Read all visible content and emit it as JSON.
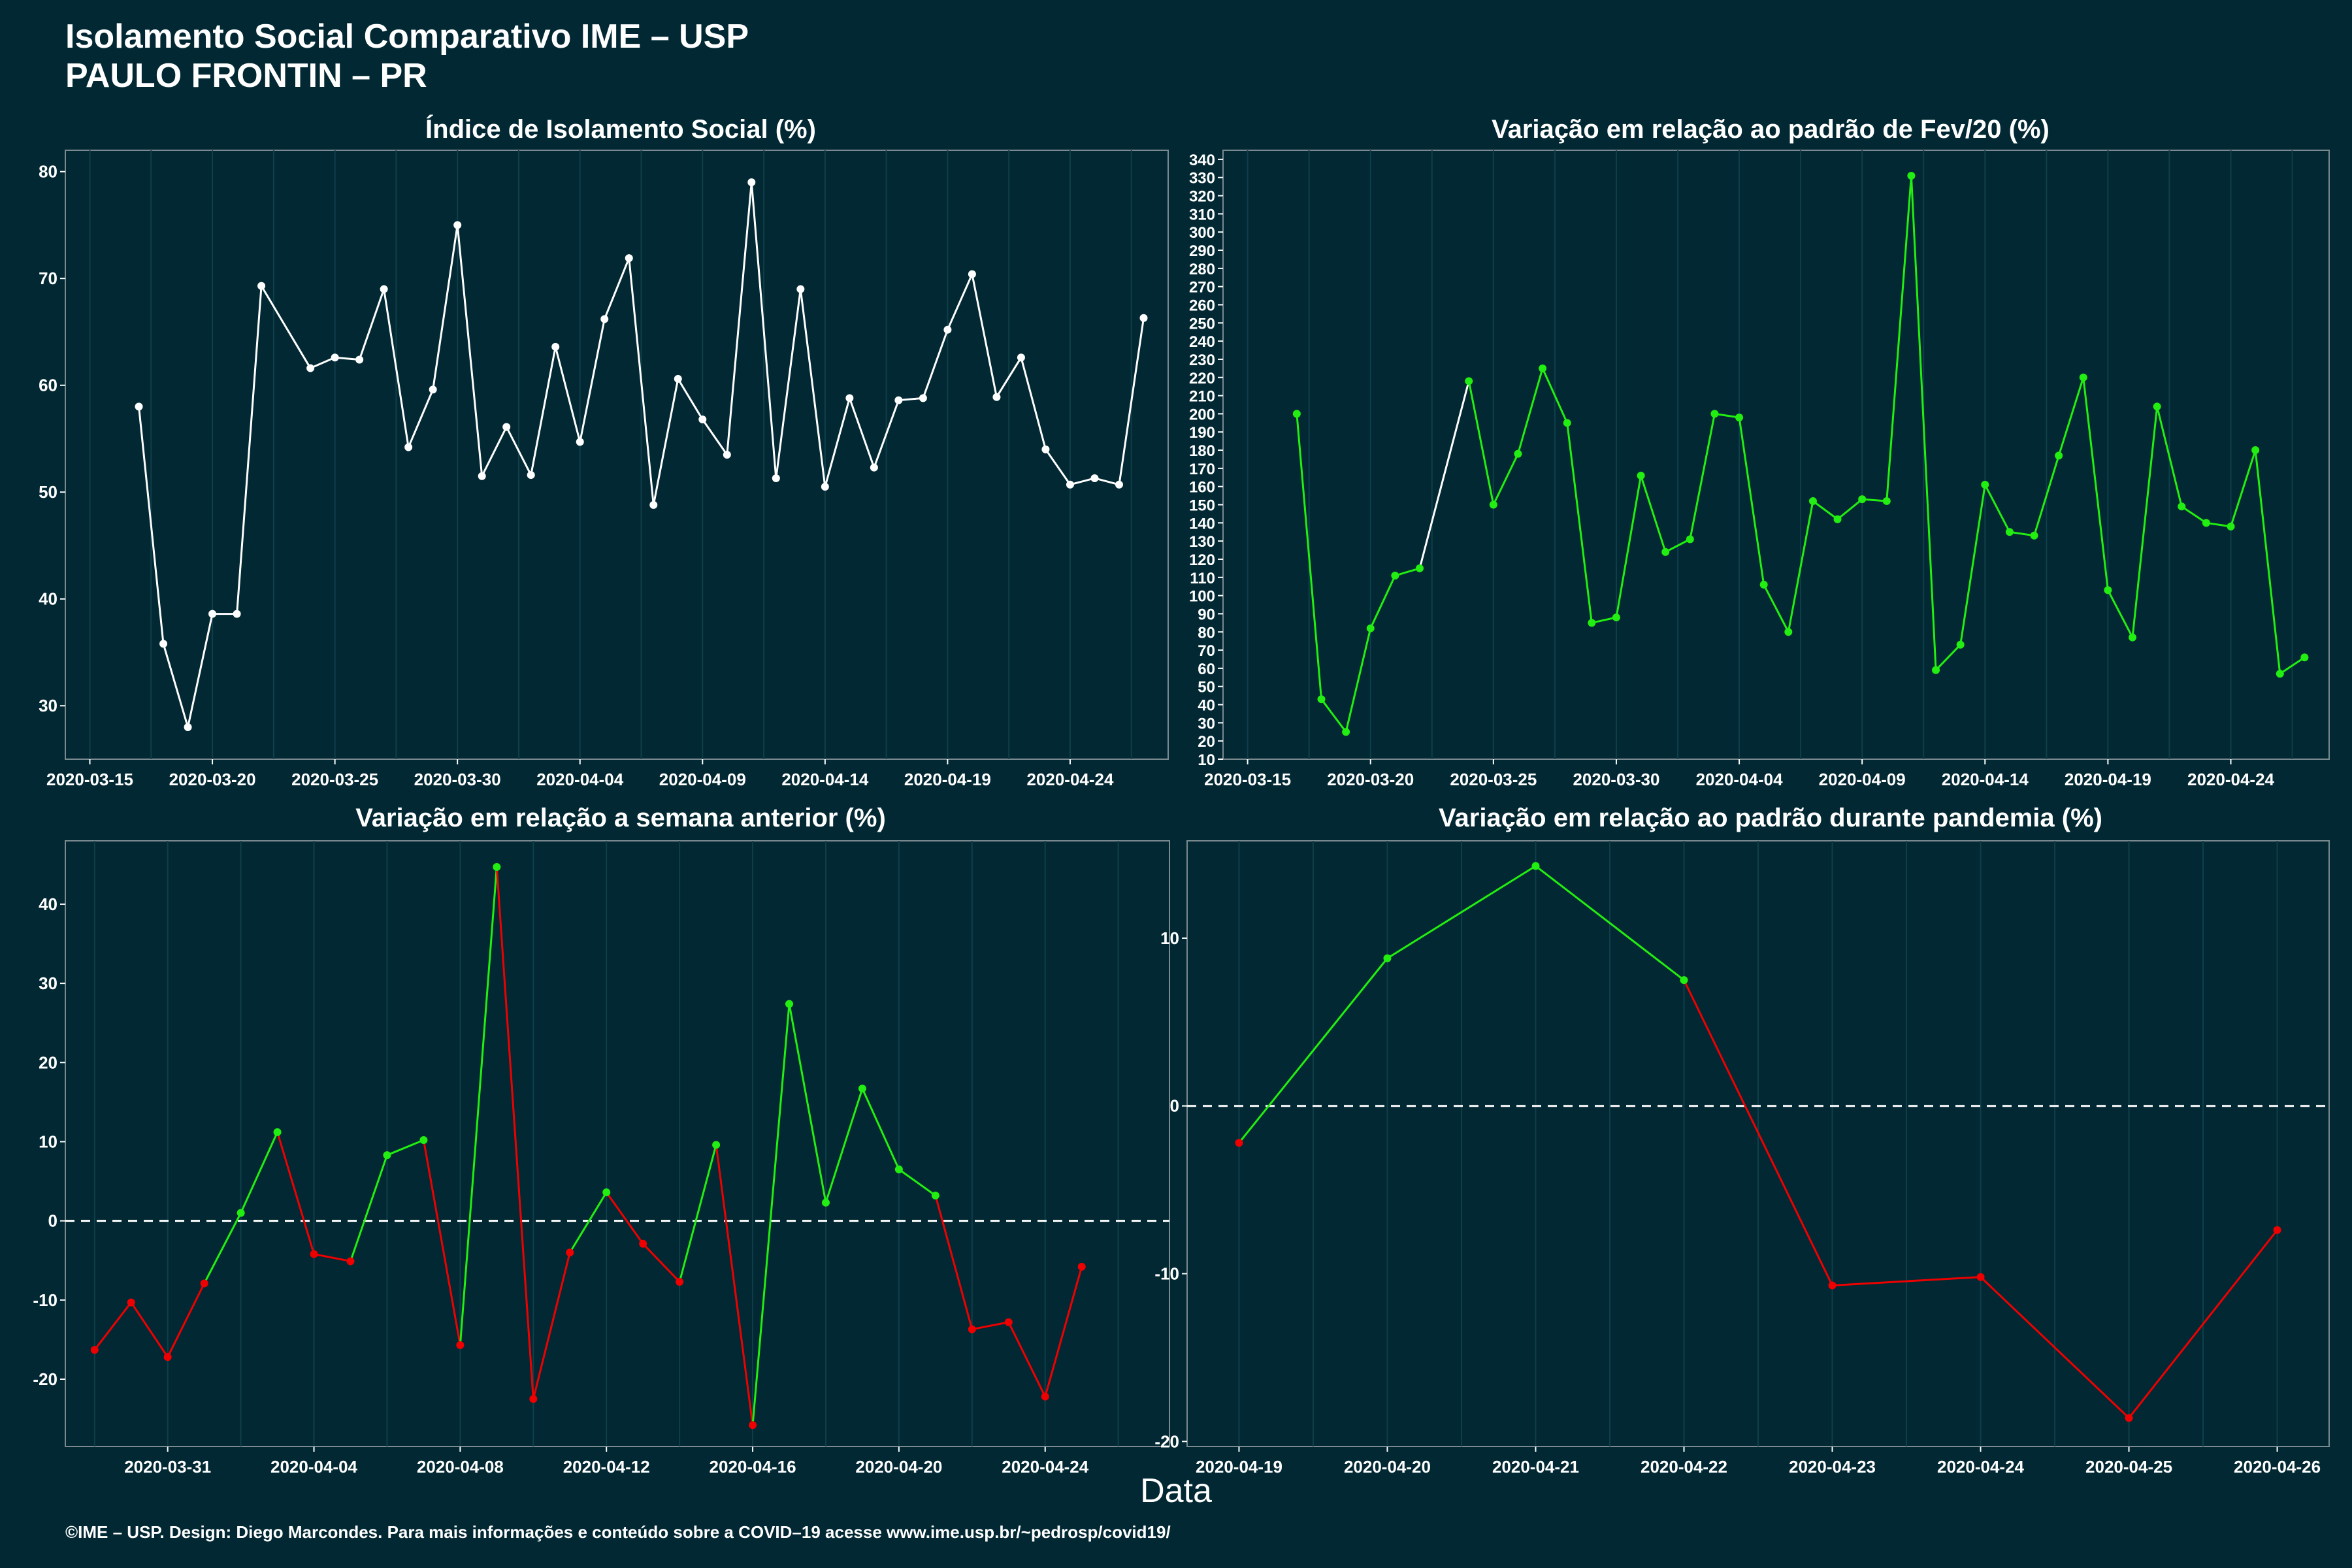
{
  "title_line1": "Isolamento Social Comparativo IME – USP",
  "title_line2": "PAULO FRONTIN – PR",
  "xlabel": "Data",
  "caption": "©IME – USP. Design: Diego Marcondes. Para mais informações e conteúdo sobre a COVID–19 acesse www.ime.usp.br/~pedrosp/covid19/",
  "colors": {
    "background": "#022833",
    "grid": "#0e3f4a",
    "white_series": "#ffffff",
    "positive": "#22ee11",
    "negative": "#ee0000"
  },
  "chart_data": [
    {
      "type": "line",
      "title": "Índice de Isolamento Social (%)",
      "xlabel": "Data",
      "ylabel": "",
      "x_start": "2020-03-17",
      "x_end": "2020-04-26",
      "xlim_dates": [
        "2020-03-14",
        "2020-04-28"
      ],
      "ylim": [
        25,
        82
      ],
      "yticks": [
        30,
        40,
        50,
        60,
        70,
        80
      ],
      "xtick_labels": [
        "2020-03-15",
        "2020-03-20",
        "2020-03-25",
        "2020-03-30",
        "2020-04-04",
        "2020-04-09",
        "2020-04-14",
        "2020-04-19",
        "2020-04-24"
      ],
      "color_mode": "single",
      "values": [
        58.0,
        35.8,
        28.0,
        38.6,
        38.6,
        69.3,
        null,
        61.6,
        62.6,
        62.4,
        69.0,
        54.2,
        59.6,
        75.0,
        51.5,
        56.1,
        51.6,
        63.6,
        54.7,
        66.2,
        71.9,
        48.8,
        60.6,
        56.8,
        53.5,
        79.0,
        51.3,
        69.0,
        50.5,
        58.8,
        52.3,
        58.6,
        58.8,
        65.2,
        70.4,
        58.9,
        62.6,
        54.0,
        50.7,
        51.3,
        50.7,
        66.3
      ]
    },
    {
      "type": "line",
      "title": "Variação em relação ao padrão de Fev/20 (%)",
      "xlabel": "Data",
      "ylabel": "",
      "x_start": "2020-03-17",
      "x_end": "2020-04-26",
      "xlim_dates": [
        "2020-03-14",
        "2020-04-28"
      ],
      "ylim": [
        10,
        345
      ],
      "yticks": [
        10,
        20,
        30,
        40,
        50,
        60,
        70,
        80,
        90,
        100,
        110,
        120,
        130,
        140,
        150,
        160,
        170,
        180,
        190,
        200,
        210,
        220,
        230,
        240,
        250,
        260,
        270,
        280,
        290,
        300,
        310,
        320,
        330,
        340
      ],
      "xtick_labels": [
        "2020-03-15",
        "2020-03-20",
        "2020-03-25",
        "2020-03-30",
        "2020-04-04",
        "2020-04-09",
        "2020-04-14",
        "2020-04-19",
        "2020-04-24"
      ],
      "color_mode": "fev",
      "values": [
        200,
        43,
        25,
        82,
        111,
        115,
        null,
        218,
        150,
        178,
        225,
        195,
        85,
        88,
        166,
        124,
        131,
        200,
        198,
        106,
        80,
        152,
        142,
        153,
        152,
        331,
        59,
        73,
        161,
        135,
        133,
        177,
        220,
        103,
        77,
        204,
        149,
        140,
        138,
        180,
        57,
        66
      ]
    },
    {
      "type": "line",
      "title": "Variação em relação a semana anterior (%)",
      "xlabel": "Data",
      "ylabel": "",
      "x_start": "2020-03-29",
      "x_end": "2020-04-26",
      "xlim_dates": [
        "2020-03-28.2",
        "2020-04-27.4"
      ],
      "ylim": [
        -28.5,
        48
      ],
      "yticks": [
        -20,
        -10,
        0,
        10,
        20,
        30,
        40
      ],
      "xtick_labels": [
        "2020-03-31",
        "2020-04-04",
        "2020-04-08",
        "2020-04-12",
        "2020-04-16",
        "2020-04-20",
        "2020-04-24"
      ],
      "zero_line": true,
      "color_mode": "sign",
      "values": [
        -16.3,
        -10.3,
        -17.2,
        -7.9,
        1.0,
        11.2,
        -4.2,
        -5.1,
        8.3,
        10.2,
        -15.7,
        44.7,
        -22.5,
        -4.0,
        3.6,
        -2.9,
        -7.7,
        9.6,
        -25.8,
        27.4,
        2.3,
        16.7,
        6.5,
        3.2,
        -13.7,
        -12.8,
        -22.2,
        -5.8
      ]
    },
    {
      "type": "line",
      "title": "Variação em relação ao padrão durante pandemia (%)",
      "xlabel": "Data",
      "ylabel": "",
      "x_start": "2020-04-19",
      "x_end": "2020-04-26",
      "xlim_dates": [
        "2020-04-18.65",
        "2020-04-26.35"
      ],
      "ylim": [
        -20.3,
        15.8
      ],
      "yticks": [
        -20,
        -10,
        0,
        10
      ],
      "xtick_labels": [
        "2020-04-19",
        "2020-04-20",
        "2020-04-21",
        "2020-04-22",
        "2020-04-23",
        "2020-04-24",
        "2020-04-25",
        "2020-04-26"
      ],
      "zero_line": true,
      "color_mode": "sign",
      "values": [
        -2.2,
        8.8,
        14.3,
        7.5,
        -10.7,
        -10.2,
        -18.6,
        -7.4
      ]
    }
  ]
}
